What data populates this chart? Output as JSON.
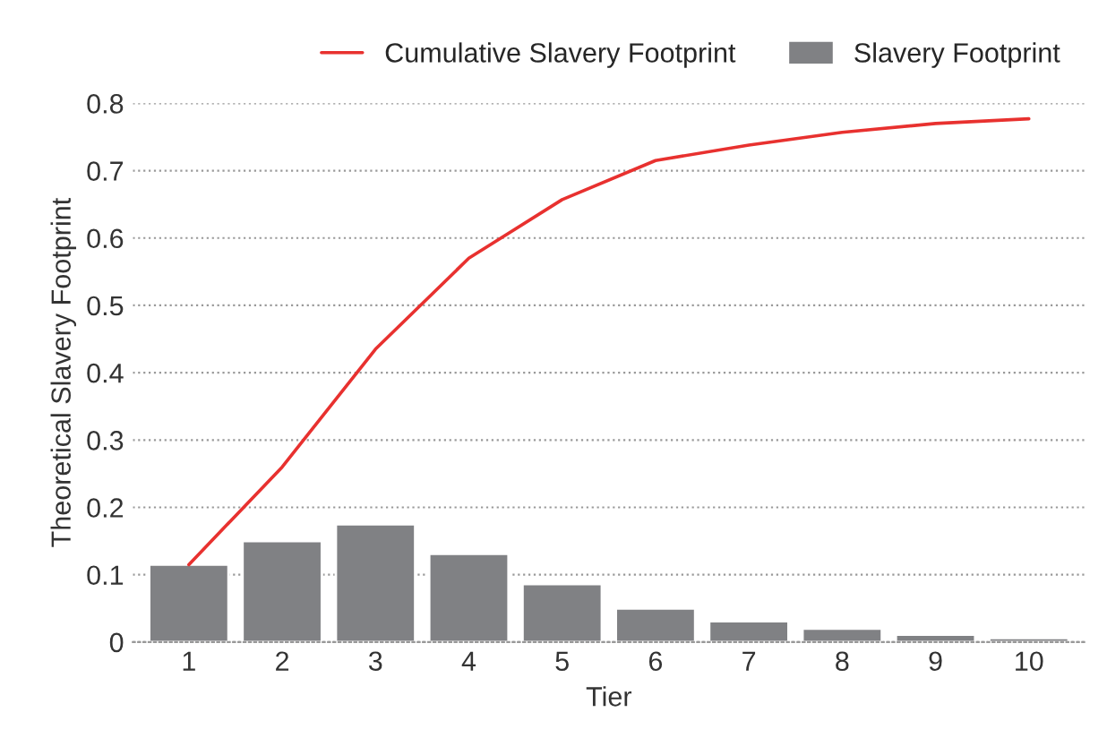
{
  "chart_data": {
    "type": "bar",
    "xlabel": "Tier",
    "ylabel": "Theoretical Slavery Footprint",
    "categories": [
      "1",
      "2",
      "3",
      "4",
      "5",
      "6",
      "7",
      "8",
      "9",
      "10"
    ],
    "series": [
      {
        "name": "Cumulative Slavery Footprint",
        "type": "line",
        "color": "#e8312f",
        "values": [
          0.115,
          0.26,
          0.435,
          0.57,
          0.657,
          0.715,
          0.738,
          0.757,
          0.77,
          0.777
        ]
      },
      {
        "name": "Slavery Footprint",
        "color": "#808184",
        "values": [
          0.115,
          0.15,
          0.175,
          0.131,
          0.086,
          0.05,
          0.031,
          0.02,
          0.011,
          0.006
        ]
      }
    ],
    "ylim": [
      0,
      0.8
    ],
    "yticks": [
      0,
      0.1,
      0.2,
      0.3,
      0.4,
      0.5,
      0.6,
      0.7,
      0.8
    ],
    "grid": "y",
    "legend": "top right"
  }
}
